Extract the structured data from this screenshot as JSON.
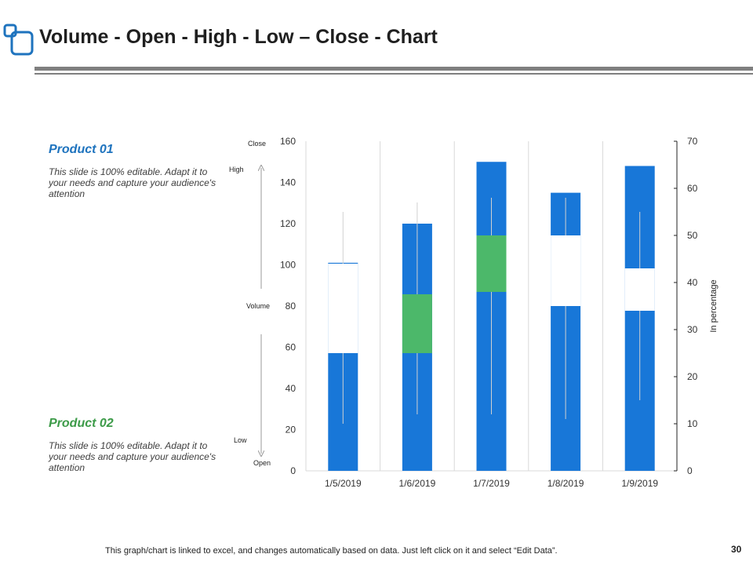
{
  "slide": {
    "title": "Volume - Open - High - Low – Close - Chart",
    "page_number": "30",
    "footer_note": "This graph/chart is linked to excel, and changes automatically based on data. Just left click on it and select “Edit Data”."
  },
  "products": [
    {
      "name": "Product 01",
      "description": "This slide is 100% editable. Adapt it to your needs and capture your audience's attention",
      "color": "#1e73be"
    },
    {
      "name": "Product 02",
      "description": "This slide is 100% editable. Adapt it to your needs and capture your audience's attention",
      "color": "#3d9b49"
    }
  ],
  "ohlc_labels": {
    "close": "Close",
    "high": "High",
    "volume": "Volume",
    "low": "Low",
    "open": "Open"
  },
  "colors": {
    "volume": "#1877d8",
    "up": "#ffffff",
    "down": "#4cb86a",
    "grid": "#d9d9d9",
    "accent": "#1e73be"
  },
  "chart_data": {
    "type": "bar",
    "subtype": "volume-open-high-low-close",
    "categories": [
      "1/5/2019",
      "1/6/2019",
      "1/7/2019",
      "1/8/2019",
      "1/9/2019"
    ],
    "primary_axis": {
      "ylim": [
        0,
        160
      ],
      "ticks": [
        "0",
        "20",
        "40",
        "60",
        "80",
        "100",
        "120",
        "140",
        "160"
      ]
    },
    "secondary_axis": {
      "label": "In percentage",
      "ylim": [
        0,
        70
      ],
      "ticks": [
        "0",
        "10",
        "20",
        "30",
        "40",
        "50",
        "60",
        "70"
      ]
    },
    "series": [
      {
        "name": "Volume",
        "values": [
          101,
          120,
          150,
          135,
          148
        ]
      },
      {
        "name": "Open",
        "values": [
          25,
          37.5,
          50,
          35,
          34
        ]
      },
      {
        "name": "High",
        "values": [
          55,
          57,
          58,
          58,
          55
        ]
      },
      {
        "name": "Low",
        "values": [
          10,
          12,
          12,
          11,
          15
        ]
      },
      {
        "name": "Close",
        "values": [
          44,
          25,
          38,
          50,
          43
        ]
      }
    ],
    "grid": "vertical",
    "legend": "none"
  }
}
